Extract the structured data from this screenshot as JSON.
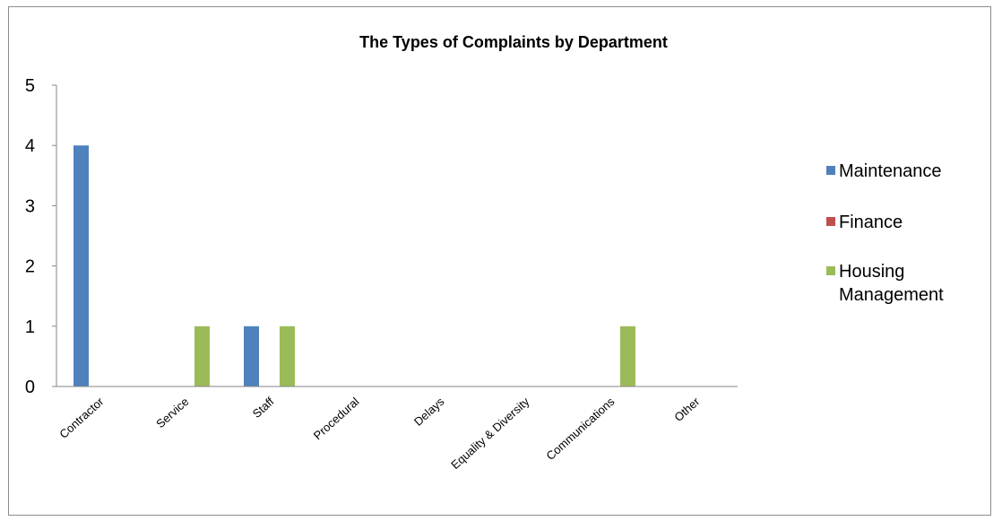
{
  "chart_data": {
    "type": "bar",
    "title": "The Types of Complaints by Department",
    "xlabel": "",
    "ylabel": "",
    "ylim": [
      0,
      5
    ],
    "yticks": [
      "0",
      "1",
      "2",
      "3",
      "4",
      "5"
    ],
    "categories": [
      "Contractor",
      "Service",
      "Staff",
      "Procedural",
      "Delays",
      "Equality & Diversity",
      "Communications",
      "Other"
    ],
    "series": [
      {
        "name": "Maintenance",
        "color": "#4f81bd",
        "values": [
          4,
          0,
          1,
          0,
          0,
          0,
          0,
          0
        ]
      },
      {
        "name": "Finance",
        "color": "#c0504d",
        "values": [
          0,
          0,
          0,
          0,
          0,
          0,
          0,
          0
        ]
      },
      {
        "name": "Housing Management",
        "name_lines": [
          "Housing",
          "Management"
        ],
        "color": "#9bbb59",
        "values": [
          0,
          1,
          1,
          0,
          0,
          0,
          1,
          0
        ]
      }
    ],
    "grid": false,
    "legend_position": "right"
  }
}
